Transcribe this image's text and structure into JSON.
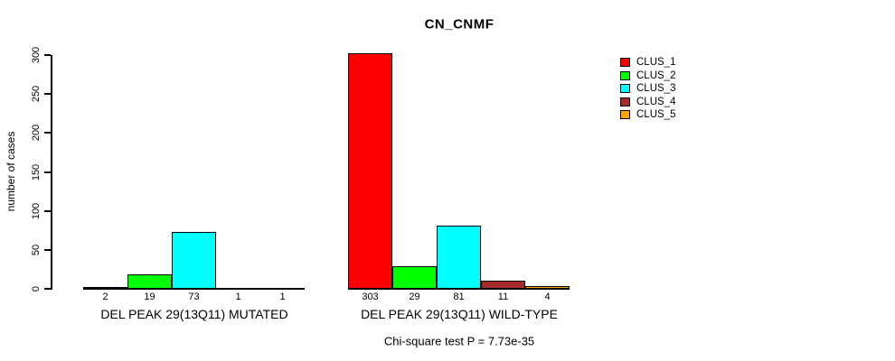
{
  "chart_data": {
    "type": "bar",
    "title": "CN_CNMF",
    "ylabel": "number of cases",
    "ylim": [
      0,
      300
    ],
    "yticks": [
      0,
      50,
      100,
      150,
      200,
      250,
      300
    ],
    "grid": false,
    "legend_position": "right-outside",
    "legend": [
      {
        "name": "CLUS_1",
        "color": "#FF0000"
      },
      {
        "name": "CLUS_2",
        "color": "#00FF00"
      },
      {
        "name": "CLUS_3",
        "color": "#00FFFF"
      },
      {
        "name": "CLUS_4",
        "color": "#A52A2A"
      },
      {
        "name": "CLUS_5",
        "color": "#FFA500"
      }
    ],
    "groups": [
      {
        "label": "DEL PEAK 29(13Q11) MUTATED",
        "values": [
          2,
          19,
          73,
          1,
          1
        ],
        "value_labels": [
          "2",
          "19",
          "73",
          "1",
          "1"
        ]
      },
      {
        "label": "DEL PEAK 29(13Q11) WILD-TYPE",
        "values": [
          303,
          29,
          81,
          11,
          4
        ],
        "value_labels": [
          "303",
          "29",
          "81",
          "11",
          "4"
        ]
      }
    ],
    "annotation": "Chi-square test P = 7.73e-35"
  }
}
